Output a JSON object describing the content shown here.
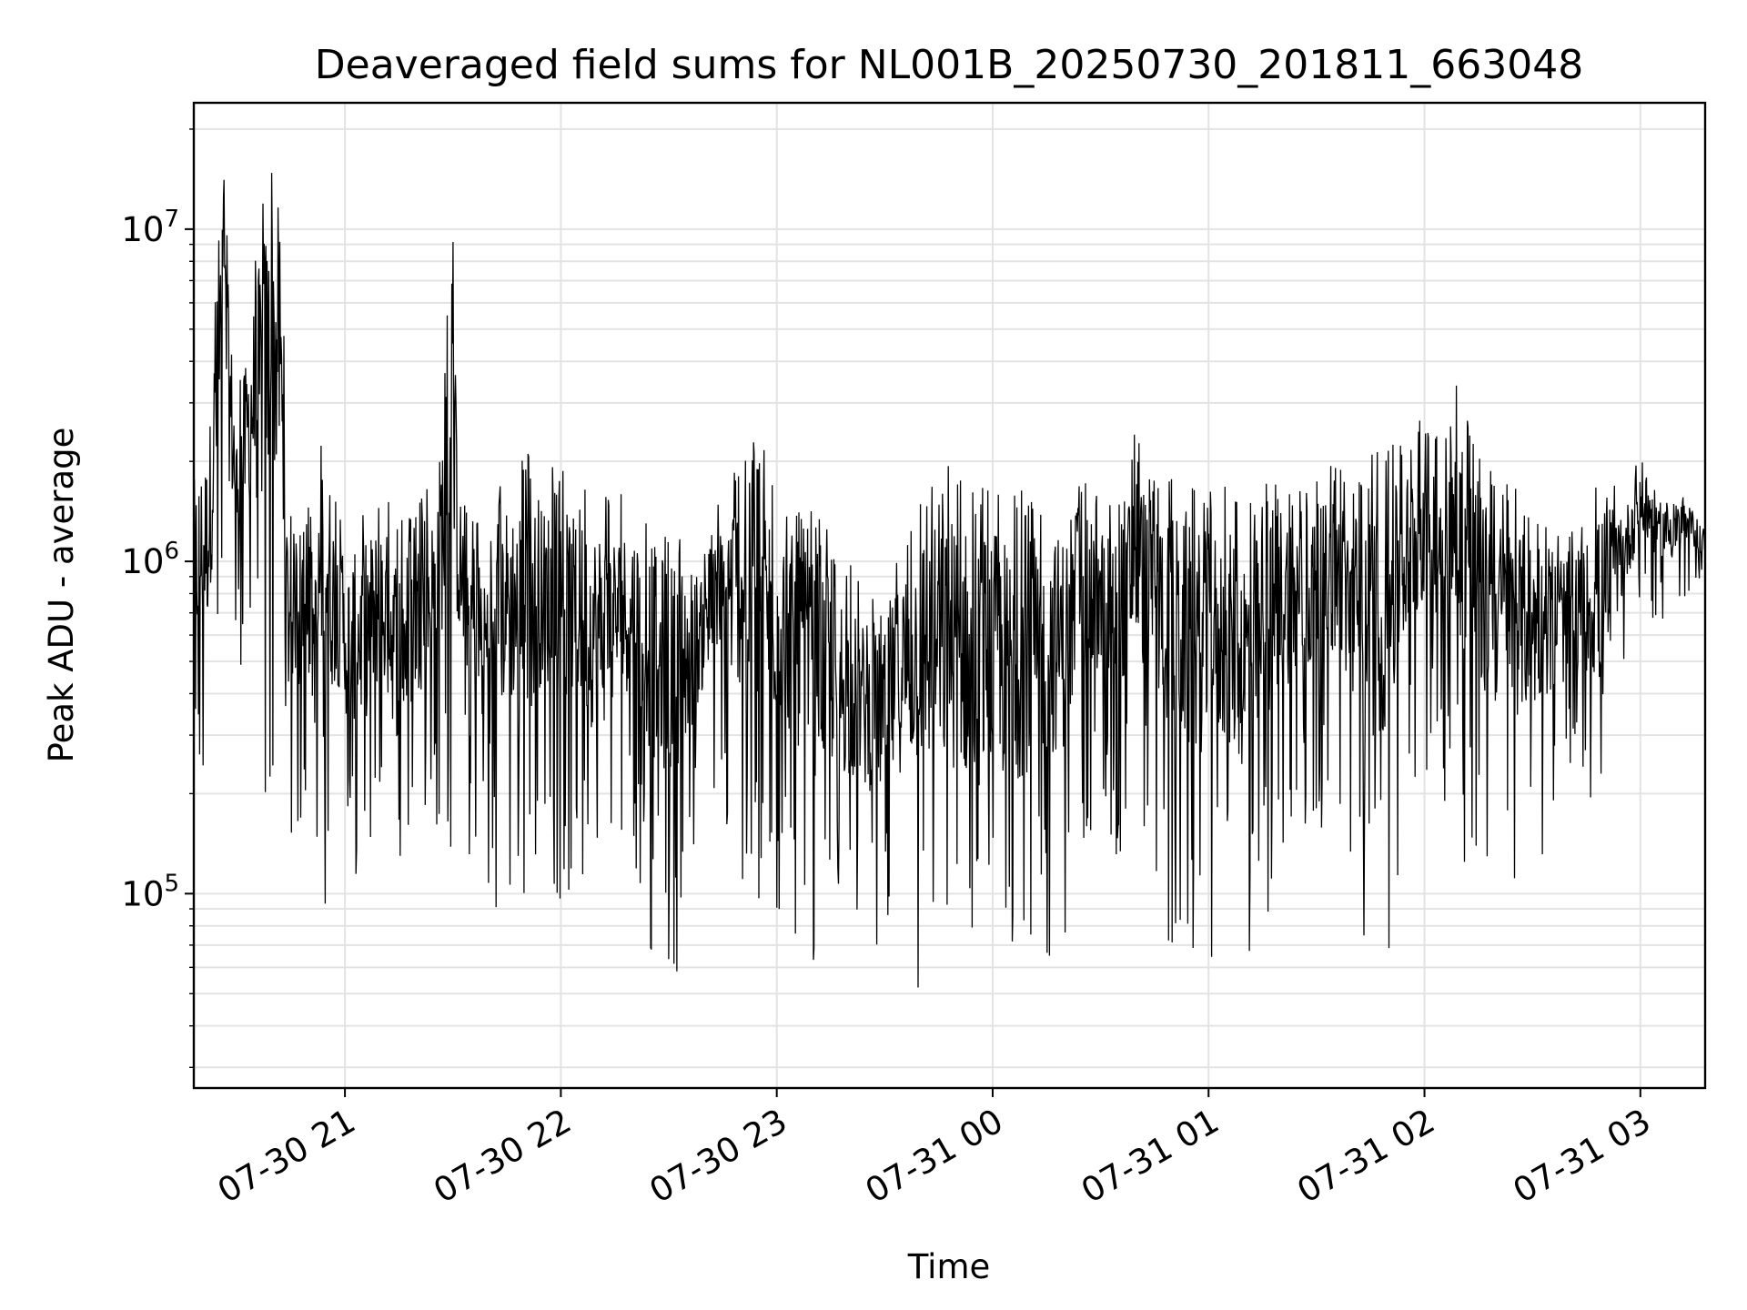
{
  "chart_data": {
    "type": "line",
    "title": "Deaveraged field sums for NL001B_20250730_201811_663048",
    "xlabel": "Time",
    "ylabel": "Peak ADU - average",
    "yscale": "log",
    "grid": true,
    "legend": "none",
    "line_color": "#000000",
    "xlim": [
      "07-30 20:18",
      "07-31 03:18"
    ],
    "ylim": [
      26000,
      24000000
    ],
    "x_ticks": [
      "07-30 21",
      "07-30 22",
      "07-30 23",
      "07-31 00",
      "07-31 01",
      "07-31 02",
      "07-31 03"
    ],
    "y_ticks": [
      {
        "value": 100000,
        "base": "10",
        "exp": "5"
      },
      {
        "value": 1000000,
        "base": "10",
        "exp": "6"
      },
      {
        "value": 10000000,
        "base": "10",
        "exp": "7"
      }
    ],
    "series": [
      {
        "x": [
          "07-30 20:18",
          "07-30 20:22",
          "07-30 20:26",
          "07-30 20:30",
          "07-30 20:34",
          "07-30 20:38",
          "07-30 20:42",
          "07-30 20:44",
          "07-30 20:46",
          "07-30 20:48",
          "07-30 20:50",
          "07-30 20:52",
          "07-30 20:54",
          "07-30 20:56",
          "07-30 20:58",
          "07-30 21:00",
          "07-30 21:05",
          "07-30 21:10",
          "07-30 21:15",
          "07-30 21:20",
          "07-30 21:25",
          "07-30 21:30",
          "07-30 21:32",
          "07-30 21:35",
          "07-30 21:40",
          "07-30 21:45",
          "07-30 21:50",
          "07-30 21:55",
          "07-30 22:00",
          "07-30 22:05",
          "07-30 22:10",
          "07-30 22:15",
          "07-30 22:20",
          "07-30 22:25",
          "07-30 22:30",
          "07-30 22:35",
          "07-30 22:40",
          "07-30 22:45",
          "07-30 22:50",
          "07-30 22:55",
          "07-30 23:00",
          "07-30 23:05",
          "07-30 23:10",
          "07-30 23:15",
          "07-30 23:20",
          "07-30 23:25",
          "07-30 23:30",
          "07-30 23:35",
          "07-30 23:40",
          "07-30 23:45",
          "07-30 23:50",
          "07-30 23:55",
          "07-31 00:00",
          "07-31 00:05",
          "07-31 00:10",
          "07-31 00:15",
          "07-31 00:20",
          "07-31 00:25",
          "07-31 00:30",
          "07-31 00:35",
          "07-31 00:40",
          "07-31 00:45",
          "07-31 00:50",
          "07-31 00:55",
          "07-31 01:00",
          "07-31 01:05",
          "07-31 01:10",
          "07-31 01:15",
          "07-31 01:20",
          "07-31 01:25",
          "07-31 01:30",
          "07-31 01:35",
          "07-31 01:40",
          "07-31 01:45",
          "07-31 01:50",
          "07-31 01:55",
          "07-31 02:00",
          "07-31 02:05",
          "07-31 02:10",
          "07-31 02:15",
          "07-31 02:20",
          "07-31 02:25",
          "07-31 02:30",
          "07-31 02:35",
          "07-31 02:40",
          "07-31 02:45",
          "07-31 02:50",
          "07-31 02:55",
          "07-31 03:00",
          "07-31 03:05",
          "07-31 03:10",
          "07-31 03:15",
          "07-31 03:18"
        ],
        "high": [
          2300000,
          2800000,
          18000000,
          3000000,
          7000000,
          17000000,
          15000000,
          1800000,
          1500000,
          1200000,
          1500000,
          1300000,
          5200000,
          2200000,
          1500000,
          1200000,
          1500000,
          1700000,
          1400000,
          1500000,
          1800000,
          9600000,
          2000000,
          1600000,
          1400000,
          2000000,
          2200000,
          1900000,
          2000000,
          1700000,
          1800000,
          1600000,
          1600000,
          1600000,
          1400000,
          1300000,
          1100000,
          1700000,
          2400000,
          2400000,
          1900000,
          1600000,
          1400000,
          1300000,
          1000000,
          800000,
          800000,
          1300000,
          1800000,
          1900000,
          2100000,
          1700000,
          1900000,
          1600000,
          1700000,
          1650000,
          1700000,
          1750000,
          1600000,
          1900000,
          2600000,
          1900000,
          2000000,
          1800000,
          1700000,
          1700000,
          1600000,
          1700000,
          2000000,
          1800000,
          1800000,
          2000000,
          1900000,
          2200000,
          2300000,
          2400000,
          3300000,
          2500000,
          3700000,
          2200000,
          1800000,
          1700000,
          1500000,
          1200000,
          1300000,
          1400000,
          2000000,
          1500000,
          2300000,
          1700000,
          1700000,
          1500000,
          1300000
        ],
        "low": [
          150000,
          200000,
          550000,
          440000,
          460000,
          160000,
          330000,
          90000,
          180000,
          130000,
          150000,
          85000,
          90000,
          100000,
          150000,
          120000,
          88000,
          140000,
          73000,
          130000,
          160000,
          120000,
          180000,
          120000,
          73000,
          100000,
          67000,
          130000,
          92000,
          110000,
          65000,
          110000,
          140000,
          58000,
          48000,
          74000,
          200000,
          140000,
          100000,
          70000,
          80000,
          70000,
          48000,
          60000,
          63000,
          66000,
          62000,
          58000,
          45000,
          40000,
          38000,
          36000,
          38000,
          40000,
          45000,
          55000,
          60000,
          140000,
          130000,
          110000,
          140000,
          110000,
          60000,
          50000,
          60000,
          65000,
          45000,
          70000,
          120000,
          130000,
          150000,
          180000,
          100000,
          55000,
          54000,
          180000,
          220000,
          200000,
          120000,
          100000,
          96000,
          90000,
          110000,
          150000,
          180000,
          190000,
          86000,
          450000,
          700000,
          650000,
          650000,
          850000,
          850000
        ]
      }
    ]
  }
}
